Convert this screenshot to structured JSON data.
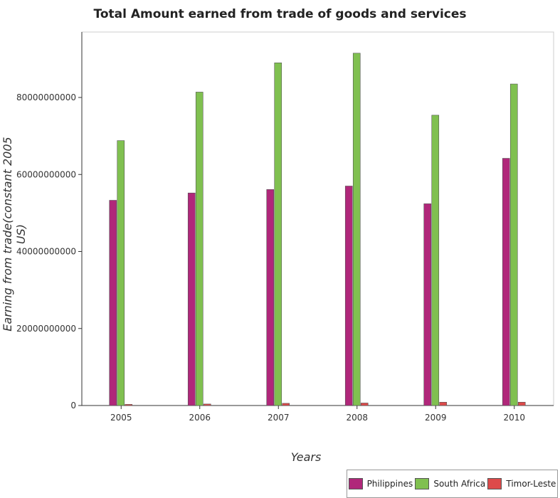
{
  "chart_data": {
    "type": "bar",
    "title": "Total Amount earned from trade of goods and services",
    "xlabel": "Years",
    "ylabel": "Earning from trade(constant 2005 US)",
    "categories": [
      "2005",
      "2006",
      "2007",
      "2008",
      "2009",
      "2010"
    ],
    "ylim": [
      0,
      97000000000
    ],
    "yticks": [
      0,
      20000000000,
      40000000000,
      60000000000,
      80000000000
    ],
    "ytick_labels": [
      "0",
      "20000000000",
      "40000000000",
      "60000000000",
      "80000000000"
    ],
    "grid": false,
    "legend_position": "bottom-right",
    "series": [
      {
        "name": "Philippines",
        "color": "#b0277a",
        "values": [
          53300000000,
          55200000000,
          56100000000,
          57000000000,
          52400000000,
          64200000000
        ]
      },
      {
        "name": "South Africa",
        "color": "#80c050",
        "values": [
          68800000000,
          81400000000,
          89000000000,
          91500000000,
          75400000000,
          83500000000
        ]
      },
      {
        "name": "Timor-Leste",
        "color": "#dd4a4a",
        "values": [
          300000000,
          390000000,
          570000000,
          650000000,
          860000000,
          870000000
        ]
      }
    ]
  }
}
